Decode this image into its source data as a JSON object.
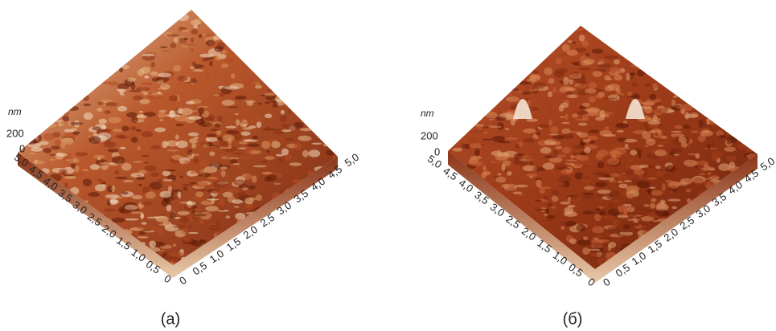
{
  "panels": [
    {
      "caption": "(a)",
      "z_unit": "nm",
      "z_ticks": [
        "200",
        "0"
      ],
      "left_axis_ticks": [
        "5,0",
        "4,5",
        "4,0",
        "3,5",
        "3,0",
        "2,5",
        "2,0",
        "1,5",
        "1,0",
        "0,5",
        "0"
      ],
      "right_axis_ticks": [
        "0",
        "0,5",
        "1,0",
        "1,5",
        "2,0",
        "2,5",
        "3,0",
        "3,5",
        "4,0",
        "4,5",
        "5,0"
      ]
    },
    {
      "caption": "(б)",
      "z_unit": "nm",
      "z_ticks": [
        "200",
        "0"
      ],
      "left_axis_ticks": [
        "5,0",
        "4,5",
        "4,0",
        "3,5",
        "3,0",
        "2,5",
        "2,0",
        "1,5",
        "1,0",
        "0,5",
        "0"
      ],
      "right_axis_ticks": [
        "0",
        "0,5",
        "1,0",
        "1,5",
        "2,0",
        "2,5",
        "3,0",
        "3,5",
        "4,0",
        "4,5",
        "5,0"
      ]
    }
  ]
}
